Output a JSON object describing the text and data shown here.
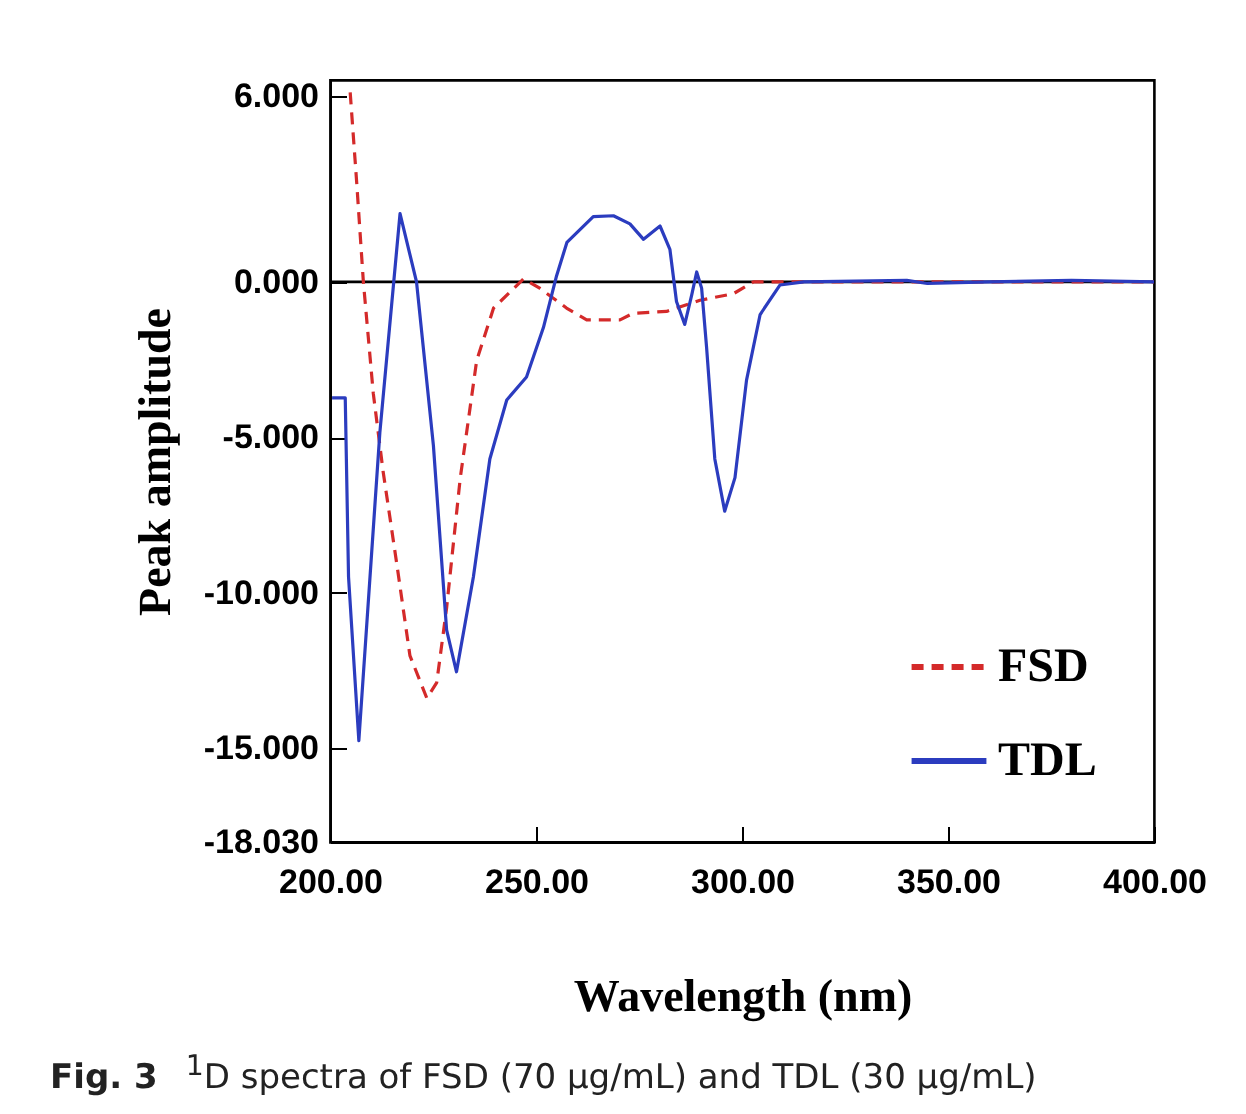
{
  "chart_data": {
    "type": "line",
    "xlabel": "Wavelength (nm)",
    "ylabel": "Peak amplitude",
    "annotations": [
      "Fig. 3",
      "$^{1}$D spectra of FSD (70 μg/mL) and TDL (30 μg/mL)"
    ],
    "xlim": [
      200,
      400
    ],
    "xticks": [
      {
        "value": 200,
        "label": "200.00"
      },
      {
        "value": 250,
        "label": "250.00"
      },
      {
        "value": 300,
        "label": "300.00"
      },
      {
        "value": 350,
        "label": "350.00"
      },
      {
        "value": 400,
        "label": "400.00"
      }
    ],
    "ylim": [
      -18.03,
      6.5
    ],
    "yticks": [
      {
        "value": 6,
        "label": "6.000"
      },
      {
        "value": 0,
        "label": "0.000"
      },
      {
        "value": -5,
        "label": "-5.000"
      },
      {
        "value": -10,
        "label": "-10.000"
      },
      {
        "value": -15,
        "label": "-15.000"
      },
      {
        "value": -18.03,
        "label": "-18.030"
      }
    ],
    "grid": false,
    "legend": "bottom right",
    "ref_lines": [
      {
        "axis": "y",
        "value": 0,
        "color": "#000000"
      }
    ],
    "series": [
      {
        "name": "FSD",
        "color": "#d42a2a",
        "line_style": "dashed",
        "x": [
          204.9,
          206.5,
          208.1,
          210.5,
          212.9,
          216.2,
          219.4,
          223.5,
          225.9,
          228.3,
          231.6,
          235.6,
          239.7,
          247,
          251,
          257.4,
          262.3,
          270.4,
          273.6,
          281.7,
          289.8,
          297.9,
          302.8,
          320,
          340,
          360,
          380,
          400
        ],
        "values": [
          6.1,
          3.16,
          0,
          -3.58,
          -6.11,
          -9.07,
          -12.03,
          -13.4,
          -12.9,
          -10.5,
          -6.33,
          -2.53,
          -0.84,
          0.1,
          -0.21,
          -0.84,
          -1.22,
          -1.22,
          -1.01,
          -0.95,
          -0.59,
          -0.38,
          0,
          0,
          0,
          0,
          0,
          0
        ]
      },
      {
        "name": "TDL",
        "color": "#2b3cbf",
        "line_style": "solid",
        "x": [
          200.5,
          203.7,
          204.5,
          207,
          212.1,
          217,
          221,
          225.1,
          228.3,
          230.7,
          234.8,
          238.8,
          242.9,
          247.7,
          251.8,
          255,
          257.5,
          263.9,
          268.8,
          272.8,
          276.1,
          280.1,
          282.5,
          284.1,
          286.1,
          287.8,
          289,
          290.2,
          291.4,
          293.4,
          295.8,
          298.3,
          301.1,
          304.4,
          309.2,
          315,
          340,
          345,
          360,
          380,
          400
        ],
        "values": [
          -3.73,
          -3.73,
          -9.5,
          -14.77,
          -4.85,
          2.2,
          0,
          -5.27,
          -11.2,
          -12.55,
          -9.5,
          -5.7,
          -3.8,
          -3.06,
          -1.47,
          0.2,
          1.27,
          2.1,
          2.13,
          1.87,
          1.37,
          1.8,
          1.05,
          -0.63,
          -1.37,
          -0.42,
          0.32,
          -0.2,
          -2.1,
          -5.7,
          -7.38,
          -6.3,
          -3.16,
          -1.05,
          -0.1,
          0,
          0.05,
          -0.05,
          0,
          0.05,
          0
        ]
      }
    ]
  }
}
